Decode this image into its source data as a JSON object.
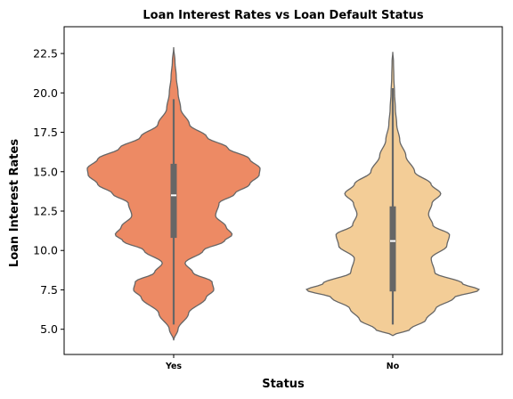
{
  "chart_data": {
    "type": "violin",
    "title": "Loan Interest Rates vs Loan Default Status",
    "xlabel": "Status",
    "ylabel": "Loan Interest Rates",
    "categories": [
      "Yes",
      "No"
    ],
    "ylim": [
      3.4,
      24.2
    ],
    "yticks": [
      5.0,
      7.5,
      10.0,
      12.5,
      15.0,
      17.5,
      20.0,
      22.5
    ],
    "ytick_labels": [
      "5.0",
      "7.5",
      "10.0",
      "12.5",
      "15.0",
      "17.5",
      "20.0",
      "22.5"
    ],
    "grid": false,
    "violins": [
      {
        "category": "Yes",
        "color": "#ED8A64",
        "min": 4.3,
        "max": 22.9,
        "q1": 10.8,
        "median": 13.5,
        "q3": 15.5,
        "whisker_low": 5.3,
        "whisker_high": 19.6,
        "density": [
          [
            4.3,
            0.0
          ],
          [
            5.0,
            0.05
          ],
          [
            6.0,
            0.17
          ],
          [
            7.0,
            0.37
          ],
          [
            7.5,
            0.46
          ],
          [
            8.0,
            0.44
          ],
          [
            8.6,
            0.22
          ],
          [
            9.2,
            0.13
          ],
          [
            10.0,
            0.34
          ],
          [
            10.6,
            0.58
          ],
          [
            11.0,
            0.67
          ],
          [
            11.5,
            0.6
          ],
          [
            12.2,
            0.48
          ],
          [
            13.0,
            0.52
          ],
          [
            13.6,
            0.7
          ],
          [
            14.2,
            0.87
          ],
          [
            14.8,
            0.98
          ],
          [
            15.2,
            0.99
          ],
          [
            15.8,
            0.87
          ],
          [
            16.5,
            0.62
          ],
          [
            17.2,
            0.38
          ],
          [
            18.0,
            0.18
          ],
          [
            19.0,
            0.08
          ],
          [
            20.0,
            0.05
          ],
          [
            21.0,
            0.03
          ],
          [
            22.0,
            0.015
          ],
          [
            22.9,
            0.0
          ]
        ]
      },
      {
        "category": "No",
        "color": "#F3CD97",
        "min": 4.6,
        "max": 22.6,
        "q1": 7.4,
        "median": 10.6,
        "q3": 12.8,
        "whisker_low": 5.3,
        "whisker_high": 20.3,
        "density": [
          [
            4.6,
            0.0
          ],
          [
            5.0,
            0.2
          ],
          [
            5.6,
            0.38
          ],
          [
            6.3,
            0.49
          ],
          [
            7.0,
            0.7
          ],
          [
            7.5,
            0.99
          ],
          [
            7.9,
            0.8
          ],
          [
            8.6,
            0.48
          ],
          [
            9.5,
            0.44
          ],
          [
            10.3,
            0.62
          ],
          [
            11.0,
            0.65
          ],
          [
            11.6,
            0.46
          ],
          [
            12.3,
            0.41
          ],
          [
            13.0,
            0.45
          ],
          [
            13.6,
            0.55
          ],
          [
            14.2,
            0.44
          ],
          [
            15.0,
            0.25
          ],
          [
            16.0,
            0.15
          ],
          [
            17.0,
            0.08
          ],
          [
            18.0,
            0.045
          ],
          [
            19.0,
            0.03
          ],
          [
            20.0,
            0.02
          ],
          [
            21.0,
            0.012
          ],
          [
            22.0,
            0.008
          ],
          [
            22.6,
            0.0
          ]
        ]
      }
    ]
  }
}
